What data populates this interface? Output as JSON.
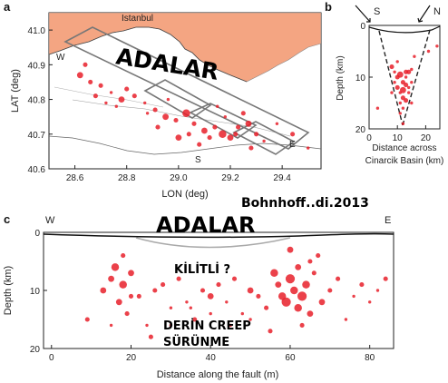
{
  "panel_a": {
    "letter": "a",
    "city_label": "Istanbul",
    "overlay_label": "ADALAR",
    "corner_w": "W",
    "corner_s": "S",
    "corner_e": "E",
    "y_ticks": [
      "41.0",
      "40.9",
      "40.8",
      "40.7",
      "40.6"
    ],
    "x_ticks": [
      "28.6",
      "28.8",
      "29.0",
      "29.2",
      "29.4"
    ],
    "ylabel": "LAT (deg)",
    "xlabel": "LON (deg)"
  },
  "panel_b": {
    "letter": "b",
    "dir_left": "S",
    "dir_right": "N",
    "y_ticks": [
      "0",
      "10",
      "20"
    ],
    "x_ticks": [
      "0",
      "10",
      "20"
    ],
    "ylabel": "Depth (km)",
    "xlabel_line1": "Distance across",
    "xlabel_line2": "Cinarcik Basin (km)"
  },
  "panel_c": {
    "letter": "c",
    "dir_left": "W",
    "dir_right": "E",
    "credit": "Bohnhoff..di.2013",
    "overlay_label": "ADALAR",
    "note_locked": "KİLİTLİ ?",
    "note_creep_1": "DERİN CREEP",
    "note_creep_2": "SÜRÜNME",
    "y_ticks": [
      "0",
      "10",
      "20"
    ],
    "x_ticks": [
      "0",
      "20",
      "40",
      "60",
      "80"
    ],
    "ylabel": "Depth (km)",
    "xlabel": "Distance along the fault (m)"
  },
  "colors": {
    "land": "#f4a582",
    "quake": "#e8202a",
    "frame": "#222222",
    "fault_box": "#777777"
  },
  "chart_data": [
    {
      "type": "scatter",
      "panel": "a",
      "xlim": [
        28.5,
        29.55
      ],
      "ylim": [
        40.6,
        41.05
      ],
      "x": [
        28.62,
        28.66,
        28.7,
        28.74,
        28.78,
        28.83,
        28.87,
        28.91,
        28.95,
        28.99,
        29.03,
        29.06,
        29.1,
        29.14,
        29.17,
        29.2,
        29.23,
        29.27,
        29.3,
        29.33,
        28.64,
        28.72,
        28.8,
        28.88,
        28.96,
        29.04,
        29.12,
        29.18,
        29.25,
        29.38,
        29.44,
        29.5,
        28.68,
        28.76,
        28.92,
        29.0,
        29.08,
        29.15,
        29.22,
        29.28
      ],
      "y": [
        40.87,
        40.85,
        40.84,
        40.82,
        40.8,
        40.81,
        40.79,
        40.77,
        40.75,
        40.74,
        40.76,
        40.73,
        40.71,
        40.72,
        40.7,
        40.69,
        40.72,
        40.73,
        40.7,
        40.68,
        40.9,
        40.79,
        40.83,
        40.76,
        40.8,
        40.7,
        40.69,
        40.75,
        40.76,
        40.73,
        40.7,
        40.66,
        40.81,
        40.78,
        40.72,
        40.69,
        40.67,
        40.78,
        40.7,
        40.66
      ],
      "size": [
        4,
        3,
        3,
        2,
        4,
        3,
        2,
        3,
        4,
        3,
        5,
        3,
        4,
        3,
        5,
        4,
        3,
        4,
        3,
        2,
        3,
        2,
        3,
        2,
        2,
        3,
        3,
        2,
        3,
        2,
        3,
        2,
        3,
        2,
        3,
        4,
        3,
        2,
        3,
        3
      ]
    },
    {
      "type": "scatter",
      "panel": "b",
      "xlim": [
        0,
        25
      ],
      "ylim": [
        20,
        0
      ],
      "x": [
        8,
        9,
        10,
        11,
        12,
        13,
        14,
        15,
        10,
        11,
        12,
        13,
        14,
        9,
        12,
        15,
        11,
        13,
        10,
        14,
        16,
        12,
        11,
        13,
        8,
        15,
        21,
        24,
        3,
        12
      ],
      "y": [
        8,
        9,
        10,
        9.5,
        11,
        10,
        9,
        8.5,
        12,
        13,
        12.5,
        11.5,
        13,
        11,
        14,
        11,
        15,
        14.5,
        7,
        12,
        6,
        16,
        17,
        9,
        13,
        15,
        5,
        4,
        16,
        19
      ],
      "size": [
        3,
        2,
        3,
        4,
        3,
        2,
        3,
        2,
        3,
        2,
        4,
        3,
        2,
        2,
        3,
        2,
        2,
        3,
        2,
        2,
        2,
        2,
        2,
        3,
        2,
        2,
        2,
        2,
        2,
        2
      ]
    },
    {
      "type": "scatter",
      "panel": "c",
      "xlim": [
        -2,
        86
      ],
      "ylim": [
        20,
        0
      ],
      "x": [
        9,
        13,
        15,
        16,
        17,
        18,
        18,
        19,
        20,
        22,
        24,
        26,
        28,
        30,
        32,
        34,
        36,
        38,
        40,
        42,
        44,
        46,
        48,
        50,
        52,
        54,
        56,
        57,
        58,
        59,
        60,
        60,
        61,
        62,
        62,
        63,
        64,
        65,
        66,
        68,
        70,
        72,
        74,
        76,
        78,
        80,
        82,
        84,
        20,
        30,
        40,
        50,
        55,
        45,
        35,
        25,
        15,
        65,
        67,
        63
      ],
      "y": [
        15,
        10,
        8,
        6,
        12,
        4,
        9,
        14,
        7,
        11,
        16,
        10,
        9,
        13,
        8,
        12,
        15,
        10,
        11,
        9,
        12,
        8,
        14,
        10,
        11,
        13,
        7,
        9,
        11,
        12,
        3,
        8,
        10,
        6,
        13,
        11,
        9,
        14,
        7,
        12,
        10,
        8,
        15,
        11,
        9,
        12,
        10,
        8,
        11,
        16,
        14,
        15,
        17,
        16,
        13,
        18,
        16,
        5,
        4,
        16
      ],
      "size": [
        3,
        4,
        4,
        5,
        4,
        3,
        5,
        3,
        4,
        3,
        2,
        3,
        3,
        2,
        3,
        2,
        3,
        3,
        4,
        3,
        2,
        3,
        2,
        4,
        3,
        3,
        5,
        4,
        5,
        6,
        4,
        6,
        5,
        4,
        5,
        6,
        5,
        4,
        3,
        4,
        3,
        3,
        2,
        2,
        3,
        2,
        2,
        3,
        3,
        2,
        2,
        2,
        3,
        2,
        2,
        3,
        2,
        3,
        3,
        3
      ]
    }
  ]
}
